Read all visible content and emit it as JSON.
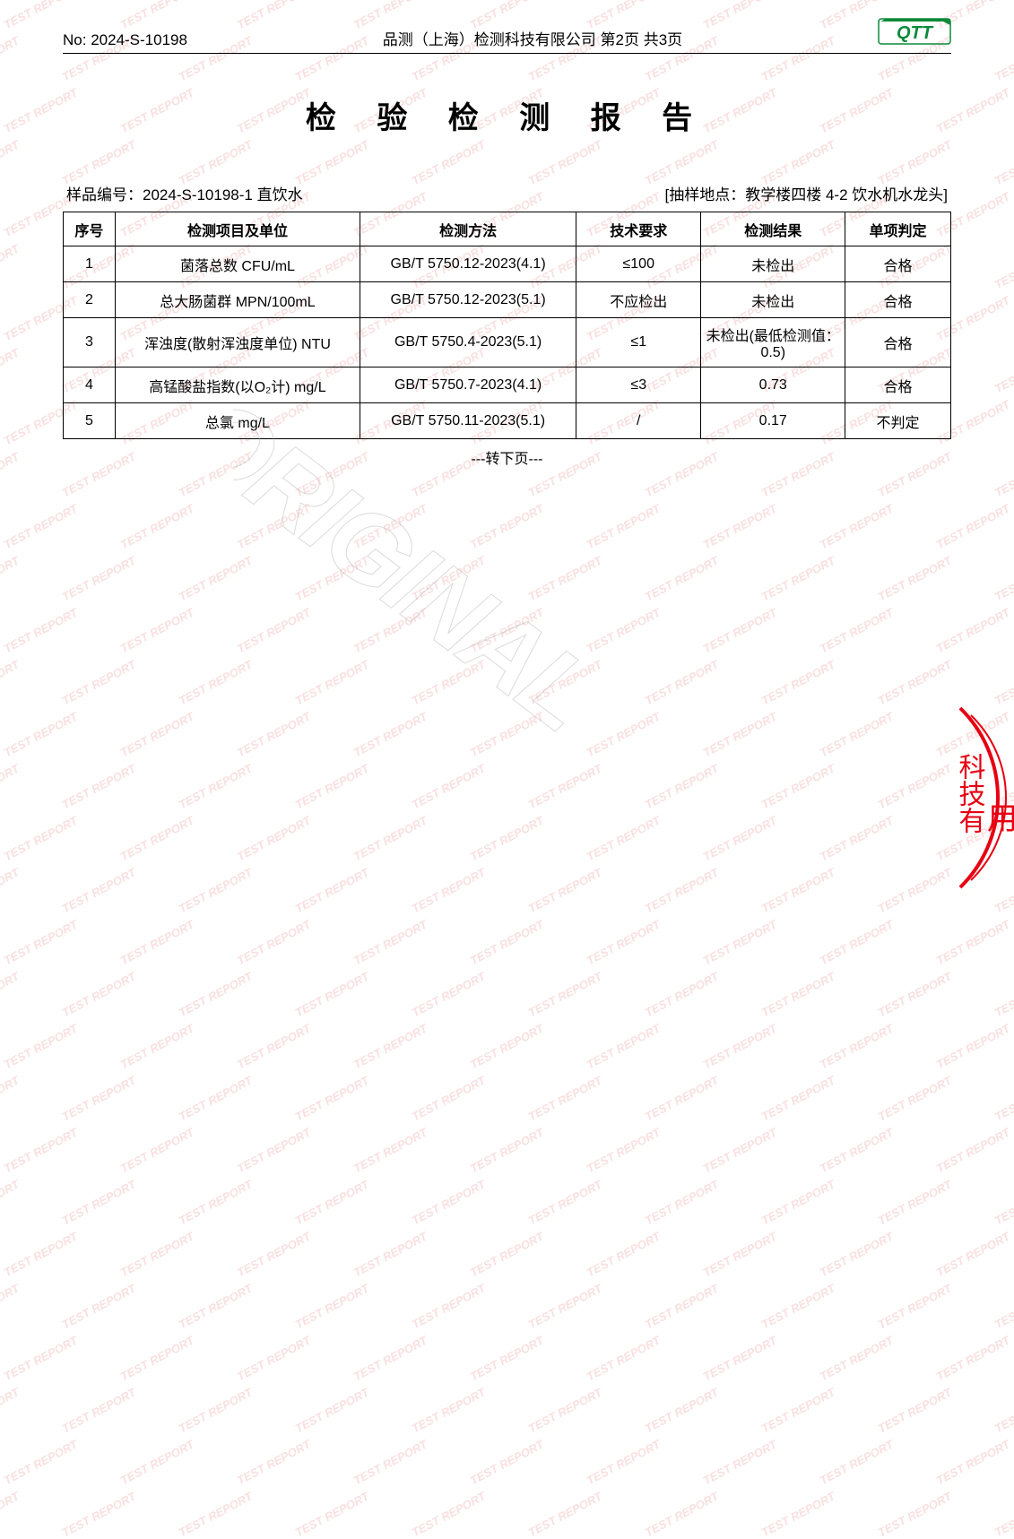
{
  "header": {
    "doc_no_label": "No:",
    "doc_no": "2024-S-10198",
    "company_page": "品测（上海）检测科技有限公司 第2页 共3页",
    "logo_text": "QTT",
    "logo_fill": "#0a8a3a",
    "logo_border": "#0a8a3a"
  },
  "title": "检 验 检 测 报 告",
  "meta": {
    "sample_label": "样品编号：",
    "sample_no": "2024-S-10198-1 直饮水",
    "location_label": "[抽样地点：",
    "location": "教学楼四楼 4-2 饮水机水龙头]",
    "right_full": "[抽样地点：教学楼四楼 4-2 饮水机水龙头]"
  },
  "table": {
    "columns": [
      "序号",
      "检测项目及单位",
      "检测方法",
      "技术要求",
      "检测结果",
      "单项判定"
    ],
    "col_widths": [
      "54px",
      "255px",
      "225px",
      "130px",
      "150px",
      "110px"
    ],
    "rows": [
      [
        "1",
        "菌落总数 CFU/mL",
        "GB/T 5750.12-2023(4.1)",
        "≤100",
        "未检出",
        "合格"
      ],
      [
        "2",
        "总大肠菌群 MPN/100mL",
        "GB/T 5750.12-2023(5.1)",
        "不应检出",
        "未检出",
        "合格"
      ],
      [
        "3",
        "浑浊度(散射浑浊度单位) NTU",
        "GB/T 5750.4-2023(5.1)",
        "≤1",
        "未检出(最低检测值：0.5)",
        "合格"
      ],
      [
        "4",
        "高锰酸盐指数(以O₂计) mg/L",
        "GB/T 5750.7-2023(4.1)",
        "≤3",
        "0.73",
        "合格"
      ],
      [
        "5",
        "总氯 mg/L",
        "GB/T 5750.11-2023(5.1)",
        "/",
        "0.17",
        "不判定"
      ]
    ]
  },
  "continued": "---转下页---",
  "watermark": {
    "text": "TEST REPORT",
    "color": "#f5c8c8",
    "fontsize": 13,
    "row_spacing": 58,
    "col_spacing": 130,
    "angle": -28,
    "stagger": 65
  },
  "original_stamp": "ORIGINAL",
  "seal": {
    "line1": "科技有",
    "line2": "用章",
    "color": "#e60012"
  }
}
